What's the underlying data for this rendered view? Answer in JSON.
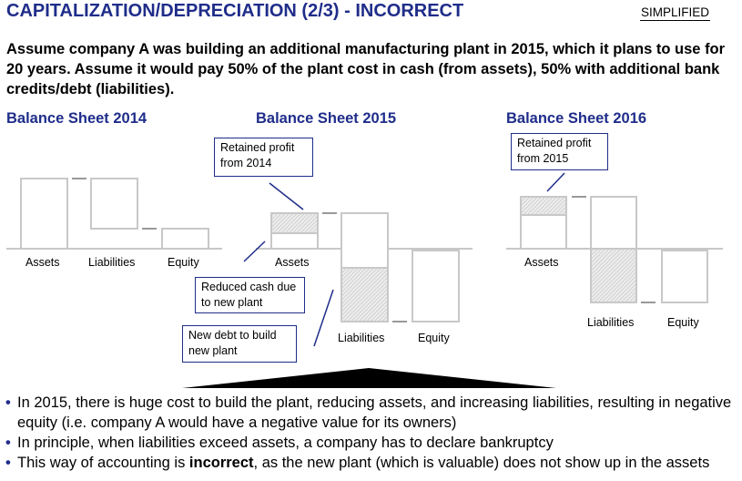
{
  "header": {
    "title": "CAPITALIZATION/DEPRECIATION (2/3) - INCORRECT",
    "tag": "SIMPLIFIED"
  },
  "intro": "Assume company A was building an additional manufacturing plant in 2015, which it plans to use for 20 years. Assume it would pay 50% of the plant cost in cash (from assets), 50% with additional bank credits/debt (liabilities).",
  "sheets": [
    {
      "title": "Balance Sheet 2014",
      "labels": {
        "assets": "Assets",
        "liabilities": "Liabilities",
        "equity": "Equity"
      }
    },
    {
      "title": "Balance Sheet 2015",
      "labels": {
        "assets": "Assets",
        "liabilities": "Liabilities",
        "equity": "Equity"
      },
      "callouts": {
        "retained": "Retained profit from 2014",
        "reduced_cash": "Reduced cash due to new plant",
        "new_debt": "New debt to build new plant"
      }
    },
    {
      "title": "Balance Sheet 2016",
      "labels": {
        "assets": "Assets",
        "liabilities": "Liabilities",
        "equity": "Equity"
      },
      "callouts": {
        "retained": "Retained profit from 2015"
      }
    }
  ],
  "bullets": [
    {
      "text": "In 2015, there is huge cost to build the plant, reducing assets, and increasing liabilities, resulting in negative equity (i.e. company A would have a negative value for its owners)"
    },
    {
      "text": "In principle, when liabilities exceed assets, a company has to declare bankruptcy"
    },
    {
      "before": "This way of accounting is ",
      "bold": "incorrect",
      "after": ", as the new plant (which is valuable) does not show up in the assets"
    }
  ],
  "colors": {
    "accent": "#1f2d8a",
    "bar_stroke": "#c8c8c8",
    "hatch": "#d4d4d4"
  }
}
